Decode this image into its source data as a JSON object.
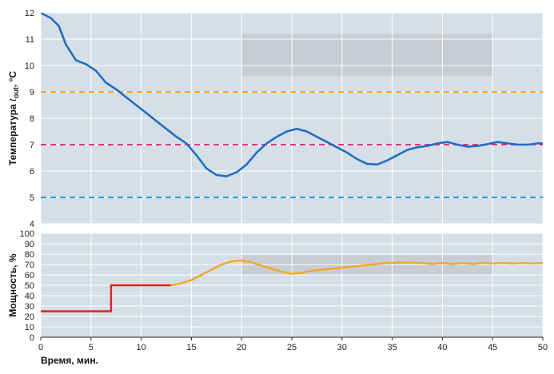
{
  "chart_data": [
    {
      "type": "line",
      "panel": "top",
      "ylabel_prefix": "Температура ",
      "ylabel_var": "t",
      "ylabel_sub": "out",
      "ylabel_suffix": ", °C",
      "xlim": [
        0,
        50
      ],
      "ylim": [
        4,
        12
      ],
      "yticks": [
        4,
        5,
        6,
        7,
        8,
        9,
        10,
        11,
        12
      ],
      "grid": true,
      "reference_lines": [
        {
          "name": "upper",
          "y": 9,
          "color": "#f5a623",
          "style": "dashed"
        },
        {
          "name": "setpoint",
          "y": 7,
          "color": "#e8337a",
          "style": "dashed"
        },
        {
          "name": "lower",
          "y": 5,
          "color": "#2a9de0",
          "style": "dashed"
        }
      ],
      "shaded_region": {
        "x": [
          20,
          45
        ],
        "y": [
          9.6,
          11.2
        ]
      },
      "series": [
        {
          "name": "temperature",
          "color": "#1f6fc5",
          "x": [
            0,
            1,
            1.8,
            2.5,
            3.5,
            4.5,
            5.5,
            6.5,
            7.5,
            8.5,
            9.5,
            10.5,
            11.5,
            12.5,
            13.5,
            14.5,
            15.5,
            16.5,
            17.5,
            18.5,
            19.5,
            20.5,
            21.5,
            22.5,
            23.5,
            24.5,
            25.5,
            26.5,
            27.5,
            28.5,
            29.5,
            30.5,
            31.5,
            32.5,
            33.5,
            34.5,
            35.5,
            36.5,
            37.5,
            38.5,
            39.5,
            40.5,
            41.5,
            42.5,
            43.5,
            44.5,
            45.5,
            46.5,
            47.5,
            48.5,
            49.5,
            50
          ],
          "y": [
            12.0,
            11.8,
            11.5,
            10.8,
            10.2,
            10.05,
            9.8,
            9.35,
            9.1,
            8.8,
            8.5,
            8.2,
            7.9,
            7.6,
            7.3,
            7.05,
            6.6,
            6.1,
            5.85,
            5.8,
            5.95,
            6.25,
            6.7,
            7.05,
            7.3,
            7.5,
            7.6,
            7.5,
            7.3,
            7.1,
            6.9,
            6.7,
            6.45,
            6.27,
            6.25,
            6.4,
            6.6,
            6.8,
            6.9,
            6.95,
            7.05,
            7.1,
            7.0,
            6.92,
            6.95,
            7.02,
            7.1,
            7.05,
            7.0,
            7.0,
            7.05,
            7.05
          ]
        }
      ]
    },
    {
      "type": "line",
      "panel": "bottom",
      "ylabel": "Мощность, %",
      "xlabel": "Время, мин.",
      "xlim": [
        0,
        50
      ],
      "ylim": [
        0,
        100
      ],
      "xticks": [
        0,
        5,
        10,
        15,
        20,
        25,
        30,
        35,
        40,
        45,
        50
      ],
      "yticks": [
        0,
        10,
        20,
        30,
        40,
        50,
        60,
        70,
        80,
        90,
        100
      ],
      "grid": true,
      "shaded_region": {
        "x": [
          20,
          45
        ],
        "y": [
          60,
          79
        ]
      },
      "series": [
        {
          "name": "power-manual",
          "color": "#e8201c",
          "x": [
            0,
            7,
            7,
            13
          ],
          "y": [
            25,
            25,
            50,
            50
          ]
        },
        {
          "name": "power-auto",
          "color": "#f5a623",
          "x": [
            13,
            14,
            15,
            16,
            17,
            18,
            19,
            20,
            21,
            22,
            23,
            24,
            25,
            26,
            27,
            28,
            30,
            32,
            34,
            36,
            38,
            39,
            40,
            41,
            42,
            43,
            44,
            45,
            46,
            47,
            48,
            49,
            50
          ],
          "y": [
            50,
            52,
            55,
            60,
            65,
            70,
            73,
            74,
            72,
            69,
            66,
            63,
            61,
            62,
            64,
            65,
            67,
            69,
            71,
            72,
            71.5,
            70.5,
            71.5,
            70.5,
            71.5,
            70.5,
            71.5,
            71,
            71.5,
            71,
            71.5,
            71,
            71.5
          ]
        }
      ]
    }
  ]
}
